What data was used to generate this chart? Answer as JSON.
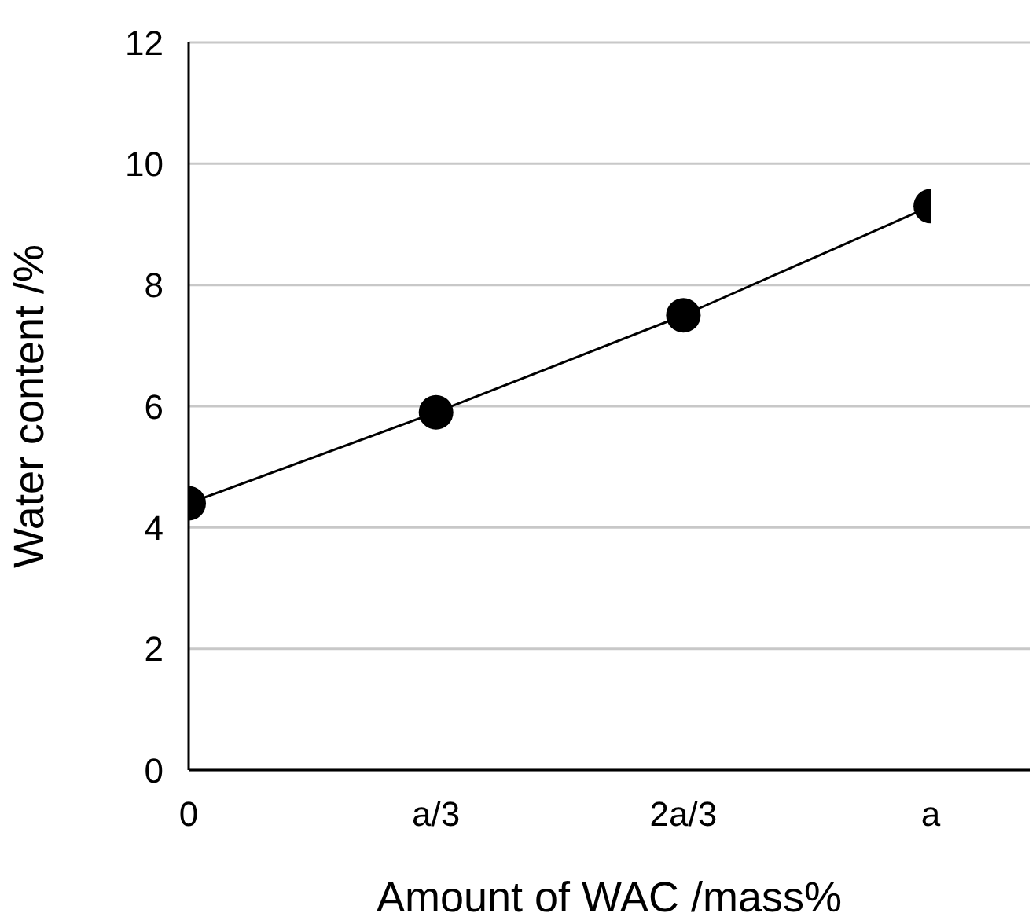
{
  "chart_data": {
    "type": "line",
    "xlabel": "Amount of WAC  /mass%",
    "ylabel": "Water content /%",
    "categories": [
      "0",
      "a/3",
      "2a/3",
      "a"
    ],
    "series": [
      {
        "color": "#000000",
        "values": [
          4.4,
          5.9,
          7.5,
          9.3
        ]
      }
    ],
    "ylim": [
      0,
      12
    ],
    "yticks": [
      0,
      2,
      4,
      6,
      8,
      10,
      12
    ],
    "grid": "y",
    "marker": "circle",
    "line_style": "solid",
    "legend": false
  }
}
